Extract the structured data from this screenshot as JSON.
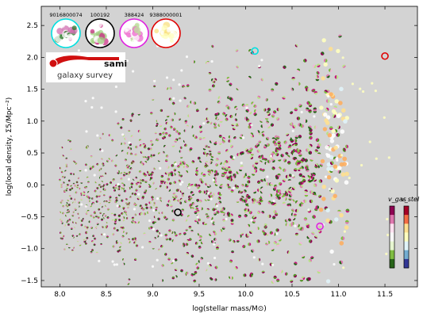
{
  "chart_data": {
    "type": "scatter",
    "xlabel": "log(stellar mass/M⊙)",
    "ylabel": "log(local density, Σ5/Mpc⁻²)",
    "xlim": [
      7.8,
      11.85
    ],
    "ylim": [
      -1.6,
      2.8
    ],
    "x_ticks": [
      "8.0",
      "8.5",
      "9.0",
      "9.5",
      "10.0",
      "10.5",
      "11.0",
      "11.5"
    ],
    "y_ticks": [
      "−1.5",
      "−1.0",
      "−0.5",
      "0.0",
      "0.5",
      "1.0",
      "1.5",
      "2.0",
      "2.5"
    ],
    "background": "#d3d3d3",
    "highlighted": [
      {
        "id": "9016800074",
        "x": 10.1,
        "y": 2.1,
        "ring_color": "#00e0e0"
      },
      {
        "id": "100192",
        "x": 9.27,
        "y": -0.43,
        "ring_color": "#000000"
      },
      {
        "id": "388424",
        "x": 10.8,
        "y": -0.65,
        "ring_color": "#e020e0"
      },
      {
        "id": "9388000001",
        "x": 11.5,
        "y": 2.02,
        "ring_color": "#e00000"
      }
    ],
    "insets": [
      {
        "label": "9016800074",
        "ring_color": "#00e0e0"
      },
      {
        "label": "100192",
        "ring_color": "#000000"
      },
      {
        "label": "388424",
        "ring_color": "#e020e0"
      },
      {
        "label": "9388000001",
        "ring_color": "#e00000"
      }
    ],
    "colorbars": [
      {
        "label": "v_gas",
        "colors": [
          "#8e0152",
          "#de77ae",
          "#fde0ef",
          "#f7f7f7",
          "#e6f5d0",
          "#7fbc41",
          "#276419"
        ]
      },
      {
        "label": "v_stel",
        "colors": [
          "#a50026",
          "#f46d43",
          "#fee090",
          "#ffffbf",
          "#e0f3f8",
          "#74add1",
          "#313695"
        ]
      }
    ]
  },
  "logo": {
    "title": "sami",
    "subtitle": "galaxy survey",
    "brand_color": "#d01010"
  },
  "colors": {
    "plot_bg": "#d3d3d3",
    "gas_palette": [
      "#8e0152",
      "#c51b7d",
      "#de77ae",
      "#f1b6da",
      "#ffffff",
      "#b8e186",
      "#7fbc41",
      "#4d9221",
      "#276419"
    ],
    "stel_palette": [
      "#ffffbf",
      "#fee090",
      "#fdae61",
      "#ffffff",
      "#e0f3f8"
    ]
  }
}
